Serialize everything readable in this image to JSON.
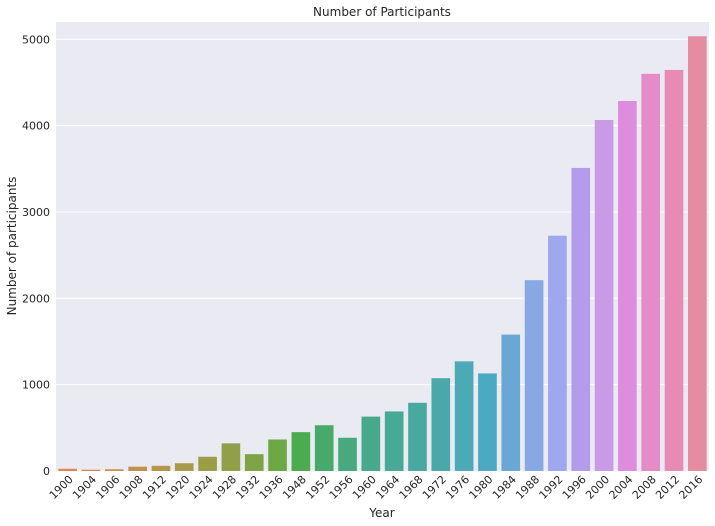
{
  "chart_data": {
    "type": "bar",
    "title": "Number of Participants",
    "xlabel": "Year",
    "ylabel": "Number of participants",
    "categories": [
      "1900",
      "1904",
      "1906",
      "1908",
      "1912",
      "1920",
      "1924",
      "1928",
      "1932",
      "1936",
      "1948",
      "1952",
      "1956",
      "1960",
      "1964",
      "1968",
      "1972",
      "1976",
      "1980",
      "1984",
      "1988",
      "1992",
      "1996",
      "2000",
      "2004",
      "2008",
      "2012",
      "2016"
    ],
    "values": [
      25,
      15,
      20,
      50,
      60,
      90,
      165,
      320,
      195,
      365,
      450,
      530,
      385,
      630,
      690,
      790,
      1075,
      1270,
      1130,
      1580,
      2210,
      2725,
      3510,
      4065,
      4285,
      4600,
      4645,
      5035
    ],
    "ylim": [
      0,
      5200
    ],
    "yticks": [
      0,
      1000,
      2000,
      3000,
      4000,
      5000
    ],
    "grid": true,
    "colors": [
      "#e1834f",
      "#d8884e",
      "#cb8e4b",
      "#c0914b",
      "#b6964a",
      "#a99a49",
      "#9d9d48",
      "#919f49",
      "#7ea447",
      "#6ca945",
      "#4bac4f",
      "#47aa6a",
      "#48a97e",
      "#48a88b",
      "#48a996",
      "#49a89f",
      "#4aa8aa",
      "#4baab6",
      "#4ba9c2",
      "#6aa8d4",
      "#88a8e4",
      "#9fa7ee",
      "#b49ced",
      "#c99ae6",
      "#dd8cde",
      "#e48cc8",
      "#e78bb4",
      "#e58ca1"
    ]
  }
}
